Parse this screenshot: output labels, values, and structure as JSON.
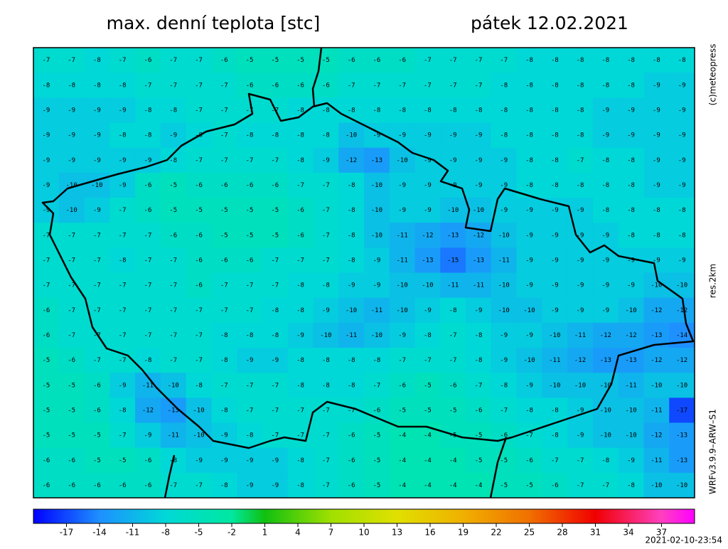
{
  "header": {
    "title": "max. denní teplota [stc]",
    "date": "pátek 12.02.2021"
  },
  "side_labels": {
    "copyright": "(c)meteopress",
    "resolution": "res.2km",
    "model": "WRFv3.9.9–ARW–S1"
  },
  "timestamp": "2021-02-10-23:54",
  "grid": [
    [
      -7,
      -7,
      -8,
      -7,
      -6,
      -7,
      -7,
      -6,
      -5,
      -5,
      -5,
      -5,
      -6,
      -6,
      -6,
      -7,
      -7,
      -7,
      -7,
      -8,
      -8,
      -8,
      -8,
      -8,
      -8,
      -8
    ],
    [
      -8,
      -8,
      -8,
      -8,
      -7,
      -7,
      -7,
      -7,
      -6,
      -6,
      -6,
      -6,
      -7,
      -7,
      -7,
      -7,
      -7,
      -7,
      -8,
      -8,
      -8,
      -8,
      -8,
      -8,
      -9,
      -9
    ],
    [
      -9,
      -9,
      -9,
      -9,
      -8,
      -8,
      -7,
      -7,
      -7,
      -7,
      -8,
      -8,
      -8,
      -8,
      -8,
      -8,
      -8,
      -8,
      -8,
      -8,
      -8,
      -8,
      -9,
      -9,
      -9,
      -9
    ],
    [
      -9,
      -9,
      -9,
      -8,
      -8,
      -9,
      -8,
      -7,
      -8,
      -8,
      -8,
      -8,
      -10,
      -9,
      -9,
      -9,
      -9,
      -9,
      -8,
      -8,
      -8,
      -8,
      -9,
      -9,
      -9,
      -9
    ],
    [
      -9,
      -9,
      -9,
      -9,
      -9,
      -8,
      -7,
      -7,
      -7,
      -7,
      -8,
      -9,
      -12,
      -13,
      -10,
      -9,
      -9,
      -9,
      -9,
      -8,
      -8,
      -7,
      -8,
      -8,
      -9,
      -9
    ],
    [
      -9,
      -10,
      -10,
      -9,
      -6,
      -5,
      -6,
      -6,
      -6,
      -6,
      -7,
      -7,
      -8,
      -10,
      -9,
      -9,
      -9,
      -9,
      -9,
      -8,
      -8,
      -8,
      -8,
      -8,
      -9,
      -9
    ],
    [
      -9,
      -10,
      -9,
      -7,
      -6,
      -5,
      -5,
      -5,
      -5,
      -5,
      -6,
      -7,
      -8,
      -10,
      -9,
      -9,
      -10,
      -10,
      -9,
      -9,
      -9,
      -9,
      -8,
      -8,
      -8,
      -8
    ],
    [
      -7,
      -7,
      -7,
      -7,
      -7,
      -6,
      -6,
      -5,
      -5,
      -5,
      -6,
      -7,
      -8,
      -10,
      -11,
      -12,
      -13,
      -12,
      -10,
      -9,
      -9,
      -9,
      -9,
      -8,
      -8,
      -8
    ],
    [
      -7,
      -7,
      -7,
      -8,
      -7,
      -7,
      -6,
      -6,
      -6,
      -7,
      -7,
      -7,
      -8,
      -9,
      -11,
      -13,
      -15,
      -13,
      -11,
      -9,
      -9,
      -9,
      -9,
      -9,
      -9,
      -9
    ],
    [
      -7,
      -7,
      -7,
      -7,
      -7,
      -7,
      -6,
      -7,
      -7,
      -7,
      -8,
      -8,
      -9,
      -9,
      -10,
      -10,
      -11,
      -11,
      -10,
      -9,
      -9,
      -9,
      -9,
      -9,
      -10,
      -10
    ],
    [
      -6,
      -7,
      -7,
      -7,
      -7,
      -7,
      -7,
      -7,
      -7,
      -8,
      -8,
      -9,
      -10,
      -11,
      -10,
      -9,
      -8,
      -9,
      -10,
      -10,
      -9,
      -9,
      -9,
      -10,
      -12,
      -12
    ],
    [
      -6,
      -7,
      -7,
      -7,
      -7,
      -7,
      -7,
      -8,
      -8,
      -8,
      -9,
      -10,
      -11,
      -10,
      -9,
      -8,
      -7,
      -8,
      -9,
      -9,
      -10,
      -11,
      -12,
      -12,
      -13,
      -14
    ],
    [
      -5,
      -6,
      -7,
      -7,
      -8,
      -7,
      -7,
      -8,
      -9,
      -9,
      -8,
      -8,
      -8,
      -8,
      -7,
      -7,
      -7,
      -8,
      -9,
      -10,
      -11,
      -12,
      -13,
      -13,
      -12,
      -12
    ],
    [
      -5,
      -5,
      -6,
      -9,
      -11,
      -10,
      -8,
      -7,
      -7,
      -7,
      -8,
      -8,
      -8,
      -7,
      -6,
      -5,
      -6,
      -7,
      -8,
      -9,
      -10,
      -10,
      -10,
      -11,
      -10,
      -10
    ],
    [
      -5,
      -5,
      -6,
      -8,
      -12,
      -13,
      -10,
      -8,
      -7,
      -7,
      -7,
      -7,
      -7,
      -6,
      -5,
      -5,
      -5,
      -6,
      -7,
      -8,
      -8,
      -9,
      -10,
      -10,
      -11,
      -17
    ],
    [
      -5,
      -5,
      -5,
      -7,
      -9,
      -11,
      -10,
      -9,
      -8,
      -7,
      -7,
      -7,
      -6,
      -5,
      -4,
      -4,
      -5,
      -5,
      -6,
      -7,
      -8,
      -9,
      -10,
      -10,
      -12,
      -13
    ],
    [
      -6,
      -6,
      -5,
      -5,
      -6,
      -8,
      -9,
      -9,
      -9,
      -9,
      -8,
      -7,
      -6,
      -5,
      -4,
      -4,
      -4,
      -5,
      -5,
      -6,
      -7,
      -7,
      -8,
      -9,
      -11,
      -13
    ],
    [
      -6,
      -6,
      -6,
      -6,
      -6,
      -7,
      -7,
      -8,
      -9,
      -9,
      -8,
      -7,
      -6,
      -5,
      -4,
      -4,
      -4,
      -4,
      -5,
      -5,
      -6,
      -7,
      -7,
      -8,
      -10,
      -10
    ]
  ],
  "colorbar": {
    "xlim": [
      -20,
      40
    ],
    "ticks": [
      -17,
      -14,
      -11,
      -8,
      -5,
      -2,
      1,
      4,
      7,
      10,
      13,
      16,
      19,
      22,
      25,
      28,
      31,
      34,
      37
    ],
    "colorscale": [
      [
        -20,
        "#0000ff"
      ],
      [
        -14,
        "#1e90ff"
      ],
      [
        -8,
        "#00d8d8"
      ],
      [
        -2,
        "#00e8a0"
      ],
      [
        1,
        "#10c010"
      ],
      [
        7,
        "#a0e000"
      ],
      [
        13,
        "#e0e000"
      ],
      [
        19,
        "#f0b000"
      ],
      [
        25,
        "#f07000"
      ],
      [
        31,
        "#f00000"
      ],
      [
        37,
        "#ff40c0"
      ],
      [
        40,
        "#ff00ff"
      ]
    ]
  }
}
